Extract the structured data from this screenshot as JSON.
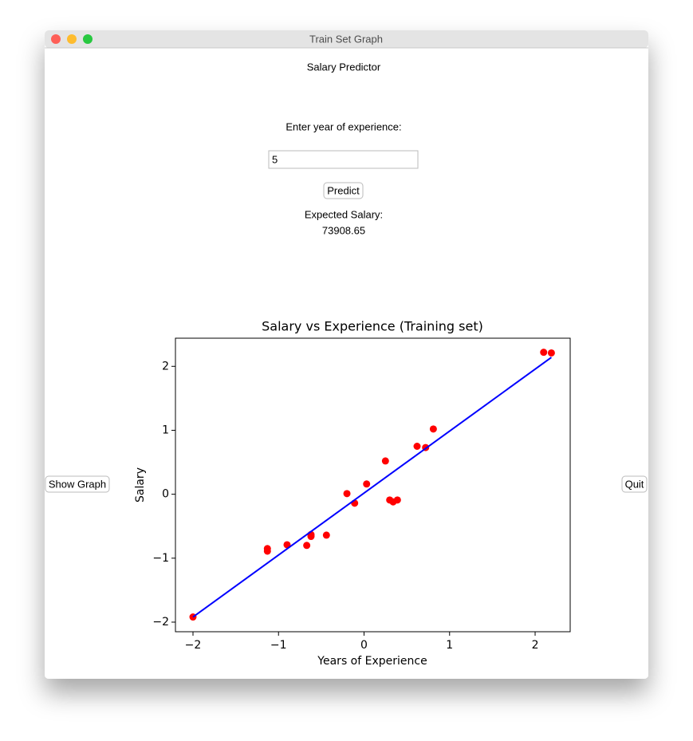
{
  "window": {
    "title": "Train Set Graph"
  },
  "app": {
    "title": "Salary Predictor",
    "prompt": "Enter year of experience:",
    "input_value": "5",
    "predict_button": "Predict",
    "result_label": "Expected Salary:",
    "result_value": "73908.65",
    "show_graph_button": "Show Graph",
    "quit_button": "Quit"
  },
  "chart_data": {
    "type": "scatter",
    "title": "Salary vs Experience (Training set)",
    "x_label": "Years of Experience",
    "y_label": "Salary",
    "xlim": [
      -2.205,
      2.41
    ],
    "ylim": [
      -2.15,
      2.44
    ],
    "xticks": [
      {
        "value": -2,
        "label": "−2"
      },
      {
        "value": -1,
        "label": "−1"
      },
      0,
      1,
      2
    ],
    "yticks": [
      {
        "value": -2,
        "label": "−2"
      },
      {
        "value": -1,
        "label": "−1"
      },
      0,
      1,
      2
    ],
    "series": [
      {
        "type": "scatter",
        "color": "#ff0000",
        "x": [
          -2.0,
          -1.13,
          -1.13,
          -0.9,
          -0.67,
          -0.62,
          -0.62,
          -0.44,
          -0.2,
          -0.11,
          0.03,
          0.25,
          0.3,
          0.34,
          0.39,
          0.62,
          0.72,
          0.81,
          2.1,
          2.19
        ],
        "values": [
          -1.92,
          -0.85,
          -0.89,
          -0.79,
          -0.8,
          -0.66,
          -0.63,
          -0.64,
          0.01,
          -0.14,
          0.16,
          0.52,
          -0.09,
          -0.12,
          -0.09,
          0.75,
          0.73,
          1.02,
          2.22,
          2.21
        ]
      },
      {
        "type": "line",
        "color": "#0000ff",
        "x": [
          -2.0,
          2.19
        ],
        "values": [
          -1.92,
          2.14
        ]
      }
    ]
  }
}
